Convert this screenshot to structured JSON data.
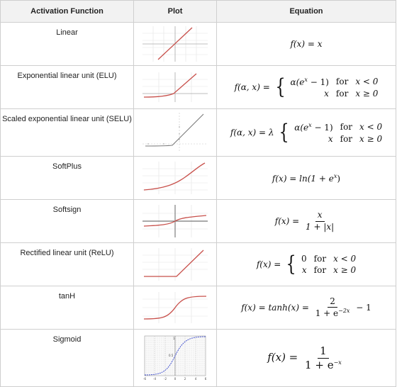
{
  "header": {
    "col1": "Activation Function",
    "col2": "Plot",
    "col3": "Equation"
  },
  "rows": [
    {
      "name": "Linear"
    },
    {
      "name": "Exponential linear unit (ELU)"
    },
    {
      "name": "Scaled exponential linear unit (SELU)"
    },
    {
      "name": "SoftPlus"
    },
    {
      "name": "Softsign"
    },
    {
      "name": "Rectified linear unit (ReLU)"
    },
    {
      "name": "tanH"
    },
    {
      "name": "Sigmoid"
    }
  ],
  "eq": {
    "linear": "f(x) = x",
    "elu_lhs": "f(α, x) =",
    "elu_case1": "α(e",
    "elu_case1b": " − 1)",
    "elu_cond1": "x < 0",
    "elu_case2": "x",
    "elu_cond2": "x ≥ 0",
    "selu_lhs": "f(α, x) = λ",
    "for": "for",
    "softplus": "f(x) = ln(1 + e",
    "softplus_end": ")",
    "softsign_lhs": "f(x) =",
    "softsign_num": "x",
    "softsign_den": "1 + |x|",
    "relu_lhs": "f(x) =",
    "relu_case1": "0",
    "relu_case2": "x",
    "tanh_lhs": "f(x) = tanh(x) =",
    "tanh_num": "2",
    "tanh_den": "1 + e",
    "tanh_den_exp": "−2x",
    "tanh_tail": "− 1",
    "sigmoid_lhs": "f(x) =",
    "sigmoid_num": "1",
    "sigmoid_den": "1 + e",
    "sigmoid_den_exp": "−x",
    "exp_x": "x"
  },
  "sigmoid_plot": {
    "x_ticks": [
      "-6",
      "-4",
      "-2",
      "0",
      "2",
      "4",
      "6"
    ],
    "y_ticks": [
      "1",
      "0.5"
    ]
  },
  "colors": {
    "curve": "#c8504b",
    "sigmoid_curve": "#3344cc",
    "grid": "#dddddd",
    "header_bg": "#f2f2f2",
    "border": "#cfcfcf"
  }
}
